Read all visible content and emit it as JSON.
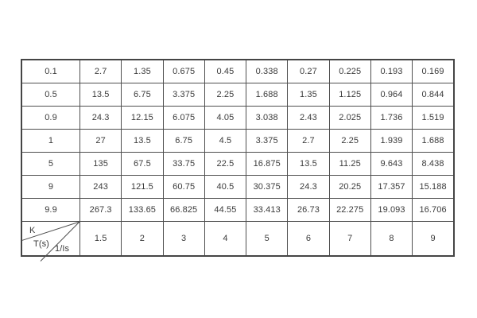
{
  "page": {
    "background": "#ffffff"
  },
  "table": {
    "colors": {
      "border": "#4f4f4f",
      "outer_border": "#454545",
      "text": "#3a3a3a",
      "cell_background": "#ffffff"
    },
    "corner": {
      "k_label": "K",
      "t_label": "T(s)",
      "i_label": "1/Is"
    },
    "column_headers": [
      "1.5",
      "2",
      "3",
      "4",
      "5",
      "6",
      "7",
      "8",
      "9"
    ],
    "rows": [
      {
        "k": "0.1",
        "values": [
          "2.7",
          "1.35",
          "0.675",
          "0.45",
          "0.338",
          "0.27",
          "0.225",
          "0.193",
          "0.169"
        ]
      },
      {
        "k": "0.5",
        "values": [
          "13.5",
          "6.75",
          "3.375",
          "2.25",
          "1.688",
          "1.35",
          "1.125",
          "0.964",
          "0.844"
        ]
      },
      {
        "k": "0.9",
        "values": [
          "24.3",
          "12.15",
          "6.075",
          "4.05",
          "3.038",
          "2.43",
          "2.025",
          "1.736",
          "1.519"
        ]
      },
      {
        "k": "1",
        "values": [
          "27",
          "13.5",
          "6.75",
          "4.5",
          "3.375",
          "2.7",
          "2.25",
          "1.939",
          "1.688"
        ]
      },
      {
        "k": "5",
        "values": [
          "135",
          "67.5",
          "33.75",
          "22.5",
          "16.875",
          "13.5",
          "11.25",
          "9.643",
          "8.438"
        ]
      },
      {
        "k": "9",
        "values": [
          "243",
          "121.5",
          "60.75",
          "40.5",
          "30.375",
          "24.3",
          "20.25",
          "17.357",
          "15.188"
        ]
      },
      {
        "k": "9.9",
        "values": [
          "267.3",
          "133.65",
          "66.825",
          "44.55",
          "33.413",
          "26.73",
          "22.275",
          "19.093",
          "16.706"
        ]
      }
    ]
  }
}
